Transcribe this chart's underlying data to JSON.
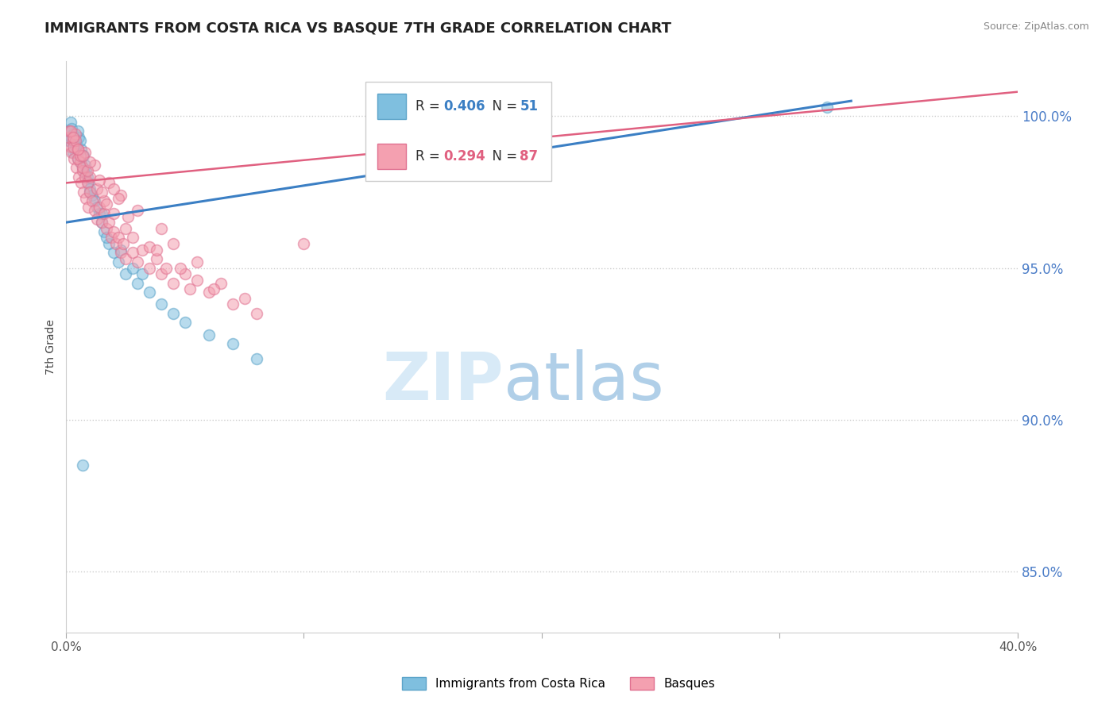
{
  "title": "IMMIGRANTS FROM COSTA RICA VS BASQUE 7TH GRADE CORRELATION CHART",
  "source": "Source: ZipAtlas.com",
  "ylabel": "7th Grade",
  "xlim": [
    0.0,
    40.0
  ],
  "ylim": [
    83.0,
    101.8
  ],
  "yticks": [
    85.0,
    90.0,
    95.0,
    100.0
  ],
  "ytick_labels": [
    "85.0%",
    "90.0%",
    "95.0%",
    "100.0%"
  ],
  "blue_R": 0.406,
  "blue_N": 51,
  "pink_R": 0.294,
  "pink_N": 87,
  "blue_color": "#7fbfdf",
  "pink_color": "#f4a0b0",
  "blue_edge_color": "#5ba3c9",
  "pink_edge_color": "#e07090",
  "blue_line_color": "#3b7fc4",
  "pink_line_color": "#e06080",
  "legend_label_blue": "Immigrants from Costa Rica",
  "legend_label_pink": "Basques",
  "background_color": "#ffffff",
  "blue_scatter_x": [
    0.1,
    0.15,
    0.2,
    0.25,
    0.3,
    0.35,
    0.4,
    0.45,
    0.5,
    0.55,
    0.6,
    0.65,
    0.7,
    0.75,
    0.8,
    0.85,
    0.9,
    0.95,
    1.0,
    1.1,
    1.2,
    1.3,
    1.4,
    1.5,
    1.6,
    1.8,
    2.0,
    2.2,
    2.5,
    3.0,
    3.5,
    4.0,
    4.5,
    5.0,
    6.0,
    7.0,
    8.0,
    1.7,
    2.8,
    0.5,
    0.6,
    0.4,
    0.3,
    1.0,
    1.5,
    0.8,
    2.3,
    3.2,
    0.2,
    32.0,
    0.7
  ],
  "blue_scatter_y": [
    99.2,
    99.5,
    99.8,
    99.6,
    99.4,
    99.0,
    98.8,
    99.1,
    98.6,
    99.3,
    98.5,
    98.9,
    98.3,
    98.7,
    98.4,
    98.2,
    98.0,
    97.8,
    97.6,
    97.4,
    97.2,
    97.0,
    96.8,
    96.5,
    96.2,
    95.8,
    95.5,
    95.2,
    94.8,
    94.5,
    94.2,
    93.8,
    93.5,
    93.2,
    92.8,
    92.5,
    92.0,
    96.0,
    95.0,
    99.5,
    99.2,
    99.0,
    98.8,
    97.5,
    96.8,
    98.1,
    95.6,
    94.8,
    99.3,
    100.3,
    88.5
  ],
  "pink_scatter_x": [
    0.1,
    0.15,
    0.2,
    0.25,
    0.3,
    0.35,
    0.4,
    0.45,
    0.5,
    0.55,
    0.6,
    0.65,
    0.7,
    0.75,
    0.8,
    0.85,
    0.9,
    0.95,
    1.0,
    1.1,
    1.2,
    1.3,
    1.4,
    1.5,
    1.6,
    1.7,
    1.8,
    1.9,
    2.0,
    2.1,
    2.2,
    2.3,
    2.4,
    2.5,
    2.8,
    3.0,
    3.2,
    3.5,
    3.8,
    4.0,
    4.2,
    4.5,
    5.0,
    5.2,
    5.5,
    6.0,
    6.5,
    7.0,
    7.5,
    8.0,
    0.3,
    0.5,
    0.7,
    1.0,
    1.3,
    1.6,
    2.0,
    2.5,
    3.5,
    4.8,
    0.4,
    0.8,
    1.2,
    1.8,
    2.3,
    3.0,
    4.0,
    5.5,
    0.6,
    1.5,
    2.8,
    0.9,
    1.7,
    10.0,
    15.0,
    0.2,
    1.0,
    2.2,
    0.3,
    0.7,
    1.4,
    2.6,
    3.8,
    0.5,
    2.0,
    4.5,
    6.2
  ],
  "pink_scatter_y": [
    99.3,
    99.5,
    99.0,
    98.8,
    99.2,
    98.6,
    99.4,
    98.3,
    98.9,
    98.0,
    98.5,
    97.8,
    98.2,
    97.5,
    98.0,
    97.3,
    97.8,
    97.0,
    97.5,
    97.2,
    96.9,
    96.6,
    97.0,
    96.5,
    96.8,
    96.3,
    96.5,
    96.0,
    96.2,
    95.8,
    96.0,
    95.5,
    95.8,
    95.3,
    95.5,
    95.2,
    95.6,
    95.0,
    95.3,
    94.8,
    95.0,
    94.5,
    94.8,
    94.3,
    94.6,
    94.2,
    94.5,
    93.8,
    94.0,
    93.5,
    99.0,
    98.6,
    98.3,
    98.0,
    97.6,
    97.2,
    96.8,
    96.3,
    95.7,
    95.0,
    99.2,
    98.8,
    98.4,
    97.8,
    97.4,
    96.9,
    96.3,
    95.2,
    98.7,
    97.5,
    96.0,
    98.2,
    97.1,
    95.8,
    100.2,
    99.5,
    98.5,
    97.3,
    99.3,
    98.7,
    97.9,
    96.7,
    95.6,
    98.9,
    97.6,
    95.8,
    94.3
  ],
  "blue_trend_x0": 0.0,
  "blue_trend_y0": 96.5,
  "blue_trend_x1": 33.0,
  "blue_trend_y1": 100.5,
  "pink_trend_x0": 0.0,
  "pink_trend_y0": 97.8,
  "pink_trend_x1": 40.0,
  "pink_trend_y1": 100.8
}
